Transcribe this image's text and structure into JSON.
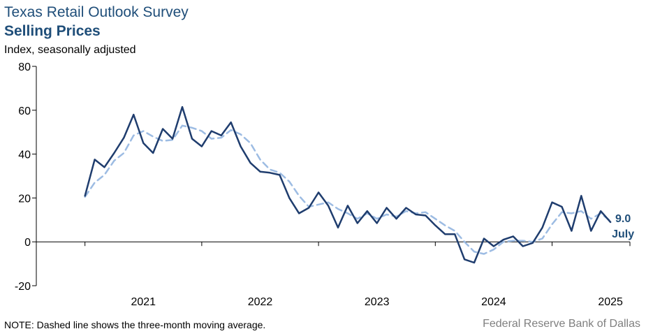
{
  "header": {
    "title": "Texas Retail Outlook Survey",
    "subtitle": "Selling Prices",
    "ylabel": "Index, seasonally adjusted"
  },
  "footer": {
    "note": "NOTE: Dashed line shows the three-month moving average.",
    "source": "Federal Reserve Bank of Dallas"
  },
  "chart_data": {
    "type": "line",
    "ylim": [
      -20,
      80
    ],
    "yticks": [
      -20,
      0,
      20,
      40,
      60,
      80
    ],
    "xlim": [
      "2020-08",
      "2025-09"
    ],
    "year_labels": [
      "2021",
      "2022",
      "2023",
      "2024",
      "2025"
    ],
    "year_label_months": [
      "2021-07",
      "2022-07",
      "2023-07",
      "2024-07",
      "2025-07"
    ],
    "year_boundaries": [
      "2021-01",
      "2022-01",
      "2023-01",
      "2024-01",
      "2025-01"
    ],
    "grid": false,
    "series": [
      {
        "style": "solid",
        "color": "#1f3d6e",
        "x": [
          "2021-01",
          "2021-02",
          "2021-03",
          "2021-04",
          "2021-05",
          "2021-06",
          "2021-07",
          "2021-08",
          "2021-09",
          "2021-10",
          "2021-11",
          "2021-12",
          "2022-01",
          "2022-02",
          "2022-03",
          "2022-04",
          "2022-05",
          "2022-06",
          "2022-07",
          "2022-08",
          "2022-09",
          "2022-10",
          "2022-11",
          "2022-12",
          "2023-01",
          "2023-02",
          "2023-03",
          "2023-04",
          "2023-05",
          "2023-06",
          "2023-07",
          "2023-08",
          "2023-09",
          "2023-10",
          "2023-11",
          "2023-12",
          "2024-01",
          "2024-02",
          "2024-03",
          "2024-04",
          "2024-05",
          "2024-06",
          "2024-07",
          "2024-08",
          "2024-09",
          "2024-10",
          "2024-11",
          "2024-12",
          "2025-01",
          "2025-02",
          "2025-03",
          "2025-04",
          "2025-05",
          "2025-06",
          "2025-07"
        ],
        "values": [
          21.0,
          37.5,
          34.0,
          40.5,
          47.5,
          58.0,
          45.0,
          40.5,
          51.5,
          47.0,
          61.5,
          47.0,
          43.5,
          50.5,
          48.5,
          54.5,
          43.5,
          36.0,
          32.0,
          31.5,
          30.5,
          20.0,
          13.0,
          15.5,
          22.5,
          16.5,
          6.5,
          16.5,
          8.5,
          14.0,
          8.5,
          15.5,
          10.5,
          15.5,
          12.5,
          12.0,
          7.5,
          3.5,
          3.5,
          -8.0,
          -9.5,
          1.5,
          -2.0,
          1.0,
          2.5,
          -2.0,
          -0.5,
          6.5,
          18.0,
          16.0,
          5.0,
          21.0,
          5.0,
          14.0,
          9.0
        ]
      },
      {
        "style": "dashed",
        "color": "#9dbce3",
        "x": [
          "2021-01",
          "2021-02",
          "2021-03",
          "2021-04",
          "2021-05",
          "2021-06",
          "2021-07",
          "2021-08",
          "2021-09",
          "2021-10",
          "2021-11",
          "2021-12",
          "2022-01",
          "2022-02",
          "2022-03",
          "2022-04",
          "2022-05",
          "2022-06",
          "2022-07",
          "2022-08",
          "2022-09",
          "2022-10",
          "2022-11",
          "2022-12",
          "2023-01",
          "2023-02",
          "2023-03",
          "2023-04",
          "2023-05",
          "2023-06",
          "2023-07",
          "2023-08",
          "2023-09",
          "2023-10",
          "2023-11",
          "2023-12",
          "2024-01",
          "2024-02",
          "2024-03",
          "2024-04",
          "2024-05",
          "2024-06",
          "2024-07",
          "2024-08",
          "2024-09",
          "2024-10",
          "2024-11",
          "2024-12",
          "2025-01",
          "2025-02",
          "2025-03",
          "2025-04",
          "2025-05",
          "2025-06",
          "2025-07"
        ],
        "values": [
          20.5,
          27.0,
          30.5,
          37.0,
          40.5,
          48.5,
          50.5,
          48.0,
          46.0,
          46.5,
          53.0,
          52.0,
          50.5,
          47.0,
          47.5,
          51.0,
          49.0,
          45.0,
          37.5,
          33.0,
          31.5,
          27.5,
          21.0,
          16.0,
          17.0,
          18.0,
          15.0,
          13.0,
          10.5,
          13.0,
          10.5,
          12.5,
          11.5,
          14.0,
          13.0,
          13.5,
          10.5,
          7.5,
          5.0,
          0.0,
          -4.5,
          -5.5,
          -3.5,
          0.0,
          0.5,
          0.5,
          0.0,
          1.5,
          8.0,
          13.5,
          13.0,
          14.0,
          10.5,
          13.0,
          9.5
        ]
      }
    ],
    "annotation": {
      "value_label": "9.0",
      "month_label": "July"
    }
  }
}
